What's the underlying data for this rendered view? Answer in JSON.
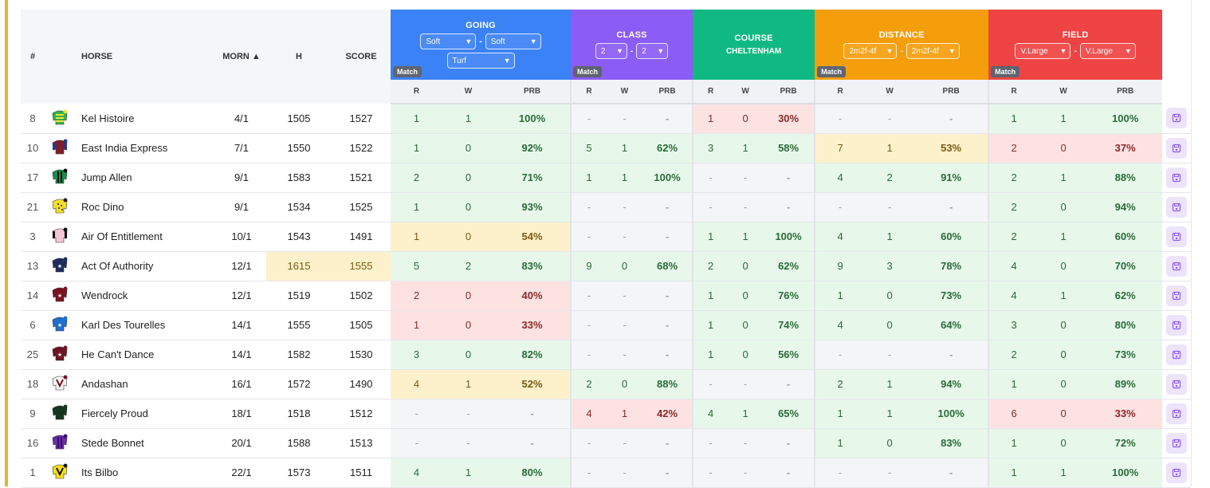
{
  "header": {
    "num": "#",
    "horse": "HORSE",
    "morn": "MORN ▲",
    "h": "H",
    "score": "SCORE",
    "sub_labels": [
      "R",
      "W",
      "PRB"
    ],
    "groups": {
      "going": {
        "title": "GOING",
        "select1": "Soft",
        "select2": "Soft",
        "select3": "Turf",
        "match": "Match"
      },
      "class": {
        "title": "CLASS",
        "select1": "2",
        "select2": "2",
        "match": "Match"
      },
      "course": {
        "title": "COURSE",
        "subtitle": "CHELTENHAM"
      },
      "distance": {
        "title": "DISTANCE",
        "select1": "2m2f-4f",
        "select2": "2m2f-4f",
        "match": "Match"
      },
      "field": {
        "title": "FIELD",
        "select1": "V.Large",
        "select2": "V.Large",
        "match": "Match"
      }
    }
  },
  "colors": {
    "going": "#3b82f6",
    "class": "#8b5cf6",
    "course": "#10b981",
    "distance": "#f59e0b",
    "field": "#ef4444",
    "good": "#e7f8eb",
    "bad": "#fde2e2",
    "mid": "#fdf1cc",
    "none": "#f4f5f7",
    "gold": "#e0b43a"
  },
  "rows": [
    {
      "num": "8",
      "silk": "green-yellow-hoops-silk",
      "horse": "Kel Histoire",
      "morn": "4/1",
      "h": "1505",
      "score": "1527",
      "hl": false,
      "going": [
        "1",
        "1",
        "100%",
        "g"
      ],
      "class": [
        "-",
        "-",
        "-",
        "n"
      ],
      "course": [
        "1",
        "0",
        "30%",
        "r"
      ],
      "distance": [
        "-",
        "-",
        "-",
        "n"
      ],
      "field": [
        "1",
        "1",
        "100%",
        "g"
      ]
    },
    {
      "num": "10",
      "silk": "maroon-blue-silk",
      "horse": "East India Express",
      "morn": "7/1",
      "h": "1550",
      "score": "1522",
      "hl": false,
      "going": [
        "1",
        "0",
        "92%",
        "g"
      ],
      "class": [
        "5",
        "1",
        "62%",
        "g"
      ],
      "course": [
        "3",
        "1",
        "58%",
        "g"
      ],
      "distance": [
        "7",
        "1",
        "53%",
        "y"
      ],
      "field": [
        "2",
        "0",
        "37%",
        "r"
      ]
    },
    {
      "num": "17",
      "silk": "green-black-stripes-silk",
      "horse": "Jump Allen",
      "morn": "9/1",
      "h": "1583",
      "score": "1521",
      "hl": false,
      "going": [
        "2",
        "0",
        "71%",
        "g"
      ],
      "class": [
        "1",
        "1",
        "100%",
        "g"
      ],
      "course": [
        "-",
        "-",
        "-",
        "n"
      ],
      "distance": [
        "4",
        "2",
        "91%",
        "g"
      ],
      "field": [
        "2",
        "1",
        "88%",
        "g"
      ]
    },
    {
      "num": "21",
      "silk": "yellow-spots-silk",
      "horse": "Roc Dino",
      "morn": "9/1",
      "h": "1534",
      "score": "1525",
      "hl": false,
      "going": [
        "1",
        "0",
        "93%",
        "g"
      ],
      "class": [
        "-",
        "-",
        "-",
        "n"
      ],
      "course": [
        "-",
        "-",
        "-",
        "n"
      ],
      "distance": [
        "-",
        "-",
        "-",
        "n"
      ],
      "field": [
        "2",
        "0",
        "94%",
        "g"
      ]
    },
    {
      "num": "3",
      "silk": "pink-black-silk",
      "horse": "Air Of Entitlement",
      "morn": "10/1",
      "h": "1543",
      "score": "1491",
      "hl": false,
      "going": [
        "1",
        "0",
        "54%",
        "y"
      ],
      "class": [
        "-",
        "-",
        "-",
        "n"
      ],
      "course": [
        "1",
        "1",
        "100%",
        "g"
      ],
      "distance": [
        "4",
        "1",
        "60%",
        "g"
      ],
      "field": [
        "2",
        "1",
        "60%",
        "g"
      ]
    },
    {
      "num": "13",
      "silk": "navy-white-silk",
      "horse": "Act Of Authority",
      "morn": "12/1",
      "h": "1615",
      "score": "1555",
      "hl": true,
      "going": [
        "5",
        "2",
        "83%",
        "g"
      ],
      "class": [
        "9",
        "0",
        "68%",
        "g"
      ],
      "course": [
        "2",
        "0",
        "62%",
        "g"
      ],
      "distance": [
        "9",
        "3",
        "78%",
        "g"
      ],
      "field": [
        "4",
        "0",
        "70%",
        "g"
      ]
    },
    {
      "num": "14",
      "silk": "maroon-star-silk",
      "horse": "Wendrock",
      "morn": "12/1",
      "h": "1519",
      "score": "1502",
      "hl": false,
      "going": [
        "2",
        "0",
        "40%",
        "r"
      ],
      "class": [
        "-",
        "-",
        "-",
        "n"
      ],
      "course": [
        "1",
        "0",
        "76%",
        "g"
      ],
      "distance": [
        "1",
        "0",
        "73%",
        "g"
      ],
      "field": [
        "4",
        "1",
        "62%",
        "g"
      ]
    },
    {
      "num": "6",
      "silk": "blue-star-silk",
      "horse": "Karl Des Tourelles",
      "morn": "14/1",
      "h": "1555",
      "score": "1505",
      "hl": false,
      "going": [
        "1",
        "0",
        "33%",
        "r"
      ],
      "class": [
        "-",
        "-",
        "-",
        "n"
      ],
      "course": [
        "1",
        "0",
        "74%",
        "g"
      ],
      "distance": [
        "4",
        "0",
        "64%",
        "g"
      ],
      "field": [
        "3",
        "0",
        "80%",
        "g"
      ]
    },
    {
      "num": "25",
      "silk": "maroon-silk",
      "horse": "He Can't Dance",
      "morn": "14/1",
      "h": "1582",
      "score": "1530",
      "hl": false,
      "going": [
        "3",
        "0",
        "82%",
        "g"
      ],
      "class": [
        "-",
        "-",
        "-",
        "n"
      ],
      "course": [
        "1",
        "0",
        "56%",
        "g"
      ],
      "distance": [
        "-",
        "-",
        "-",
        "n"
      ],
      "field": [
        "2",
        "0",
        "73%",
        "g"
      ]
    },
    {
      "num": "18",
      "silk": "white-maroon-v-silk",
      "horse": "Andashan",
      "morn": "16/1",
      "h": "1572",
      "score": "1490",
      "hl": false,
      "going": [
        "4",
        "1",
        "52%",
        "y"
      ],
      "class": [
        "2",
        "0",
        "88%",
        "g"
      ],
      "course": [
        "-",
        "-",
        "-",
        "n"
      ],
      "distance": [
        "2",
        "1",
        "94%",
        "g"
      ],
      "field": [
        "1",
        "0",
        "89%",
        "g"
      ]
    },
    {
      "num": "9",
      "silk": "dark-green-silk",
      "horse": "Fiercely Proud",
      "morn": "18/1",
      "h": "1518",
      "score": "1512",
      "hl": false,
      "going": [
        "-",
        "-",
        "-",
        "n"
      ],
      "class": [
        "4",
        "1",
        "42%",
        "r"
      ],
      "course": [
        "4",
        "1",
        "65%",
        "g"
      ],
      "distance": [
        "1",
        "1",
        "100%",
        "g"
      ],
      "field": [
        "6",
        "0",
        "33%",
        "r"
      ]
    },
    {
      "num": "16",
      "silk": "purple-silk",
      "horse": "Stede Bonnet",
      "morn": "20/1",
      "h": "1588",
      "score": "1513",
      "hl": false,
      "going": [
        "-",
        "-",
        "-",
        "n"
      ],
      "class": [
        "-",
        "-",
        "-",
        "n"
      ],
      "course": [
        "-",
        "-",
        "-",
        "n"
      ],
      "distance": [
        "1",
        "0",
        "83%",
        "g"
      ],
      "field": [
        "1",
        "0",
        "72%",
        "g"
      ]
    },
    {
      "num": "1",
      "silk": "yellow-black-v-silk",
      "horse": "Its Bilbo",
      "morn": "22/1",
      "h": "1573",
      "score": "1511",
      "hl": false,
      "going": [
        "4",
        "1",
        "80%",
        "g"
      ],
      "class": [
        "-",
        "-",
        "-",
        "n"
      ],
      "course": [
        "-",
        "-",
        "-",
        "n"
      ],
      "distance": [
        "-",
        "-",
        "-",
        "n"
      ],
      "field": [
        "1",
        "1",
        "100%",
        "g"
      ]
    }
  ]
}
